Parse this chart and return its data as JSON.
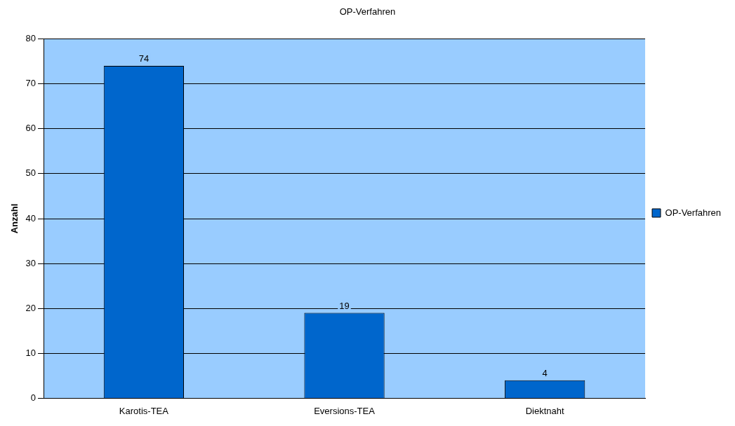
{
  "chart_data": {
    "type": "bar",
    "title": "OP-Verfahren",
    "ylabel": "Anzahl",
    "categories": [
      "Karotis-TEA",
      "Eversions-TEA",
      "Diektnaht"
    ],
    "series": [
      {
        "name": "OP-Verfahren",
        "color": "#0066cc",
        "values": [
          74,
          19,
          4
        ]
      }
    ],
    "ylim": [
      0,
      80
    ],
    "yticks": [
      0,
      10,
      20,
      30,
      40,
      50,
      60,
      70,
      80
    ],
    "grid": "y",
    "legend": "right",
    "data_labels": true
  }
}
